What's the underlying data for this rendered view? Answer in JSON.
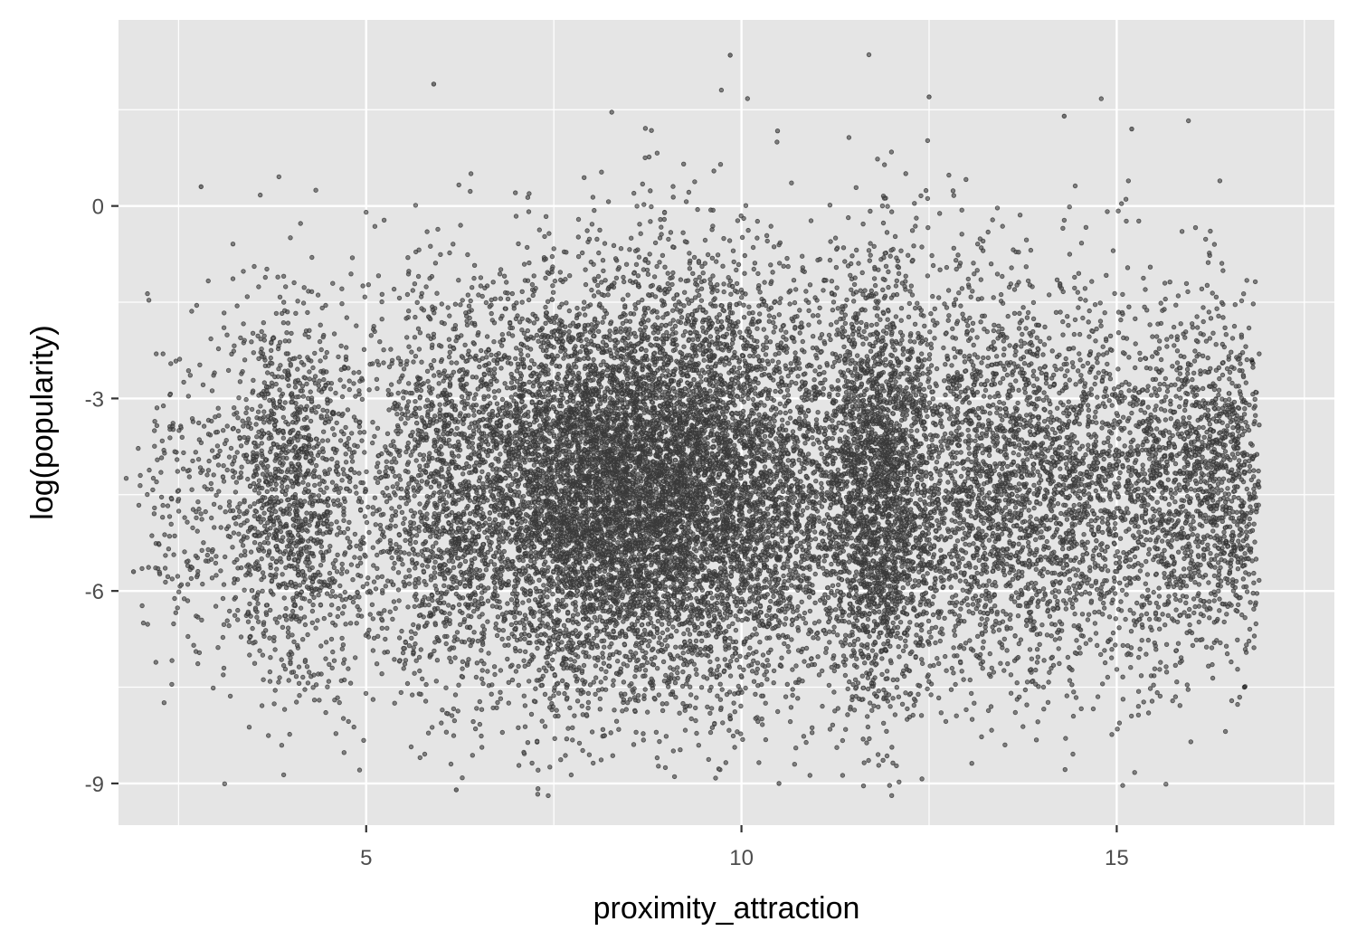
{
  "chart_data": {
    "type": "scatter",
    "title": "",
    "xlabel": "proximity_attraction",
    "ylabel": "log(popularity)",
    "xlim": [
      1.7,
      17.9
    ],
    "ylim": [
      -9.65,
      2.9
    ],
    "x_ticks": [
      5,
      10,
      15
    ],
    "x_tick_labels": [
      "5",
      "10",
      "15"
    ],
    "x_minor_ticks": [
      2.5,
      7.5,
      12.5,
      17.5
    ],
    "y_ticks": [
      0,
      -3,
      -6,
      -9
    ],
    "y_tick_labels": [
      "0",
      "-3",
      "-6",
      "-9"
    ],
    "y_minor_ticks": [
      1.5,
      -1.5,
      -4.5,
      -7.5
    ],
    "grid": true,
    "legend": "none",
    "point_color": "#000000",
    "point_alpha": 0.5,
    "panel_background": "#e5e5e5",
    "grid_color": "#ffffff",
    "approx_point_count": 20000,
    "clusters": [
      {
        "x_center": 4.0,
        "x_sd": 0.45,
        "y_center": -4.5,
        "y_sd": 1.5,
        "weight": 0.07
      },
      {
        "x_center": 8.0,
        "x_sd": 0.9,
        "y_center": -4.4,
        "y_sd": 1.55,
        "weight": 0.28
      },
      {
        "x_center": 9.7,
        "x_sd": 0.9,
        "y_center": -4.3,
        "y_sd": 1.6,
        "weight": 0.22
      },
      {
        "x_center": 11.8,
        "x_sd": 0.35,
        "y_center": -4.5,
        "y_sd": 1.7,
        "weight": 0.08
      },
      {
        "x_center": 12.9,
        "x_sd": 1.1,
        "y_center": -4.3,
        "y_sd": 1.6,
        "weight": 0.14
      },
      {
        "x_center": 15.0,
        "x_sd": 1.0,
        "y_center": -4.4,
        "y_sd": 1.5,
        "weight": 0.08
      },
      {
        "x_center": 6.0,
        "x_sd": 0.6,
        "y_center": -4.5,
        "y_sd": 1.6,
        "weight": 0.07
      },
      {
        "x_center": 2.6,
        "x_sd": 0.35,
        "y_center": -4.6,
        "y_sd": 1.4,
        "weight": 0.01
      },
      {
        "x_center": 16.3,
        "x_sd": 0.5,
        "y_center": -4.3,
        "y_sd": 1.3,
        "weight": 0.05
      }
    ],
    "sample_points": [
      {
        "x": 9.85,
        "y": 2.35
      },
      {
        "x": 5.9,
        "y": 1.9
      },
      {
        "x": 2.8,
        "y": 0.3
      },
      {
        "x": 6.2,
        "y": -9.1
      },
      {
        "x": 10.5,
        "y": -9.0
      },
      {
        "x": 1.9,
        "y": -5.7
      },
      {
        "x": 16.8,
        "y": -2.4
      },
      {
        "x": 16.7,
        "y": -7.5
      },
      {
        "x": 15.2,
        "y": 1.2
      },
      {
        "x": 14.3,
        "y": 1.4
      },
      {
        "x": 12.5,
        "y": 1.7
      }
    ]
  }
}
